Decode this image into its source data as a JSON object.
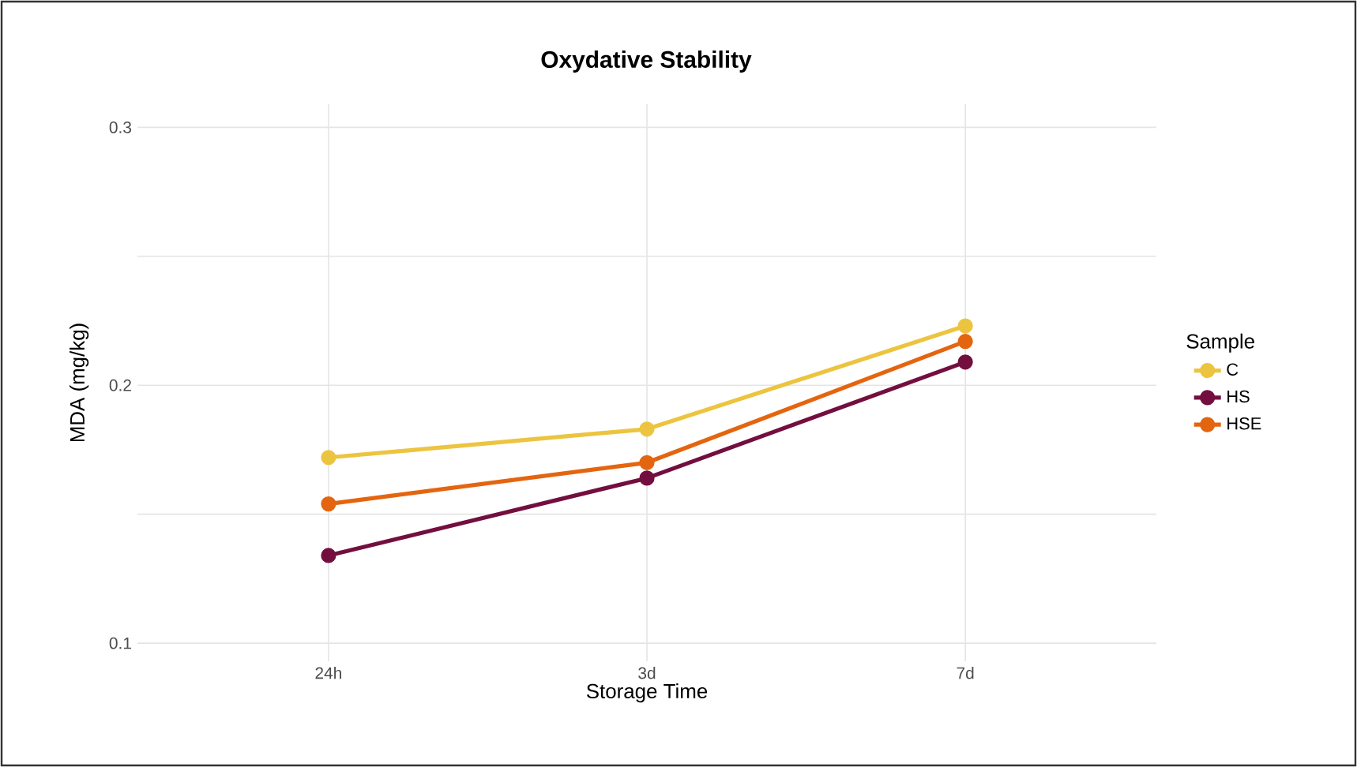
{
  "chart_data": {
    "type": "line",
    "title": "Oxydative Stability",
    "xlabel": "Storage Time",
    "ylabel": "MDA (mg/kg)",
    "legend_title": "Sample",
    "categories": [
      "24h",
      "3d",
      "7d"
    ],
    "series": [
      {
        "name": "C",
        "color": "#ecc440",
        "values": [
          0.172,
          0.183,
          0.223
        ]
      },
      {
        "name": "HS",
        "color": "#730f3f",
        "values": [
          0.134,
          0.164,
          0.209
        ]
      },
      {
        "name": "HSE",
        "color": "#e4650f",
        "values": [
          0.154,
          0.17,
          0.217
        ]
      }
    ],
    "ylim": [
      0.093,
      0.309
    ],
    "yticks": [
      0.1,
      {
        "value": 0.15,
        "label": null
      },
      0.2,
      {
        "value": 0.25,
        "label": null
      },
      0.3
    ],
    "grid": true,
    "legend": "right",
    "marker": "circle",
    "line_style": "solid"
  }
}
